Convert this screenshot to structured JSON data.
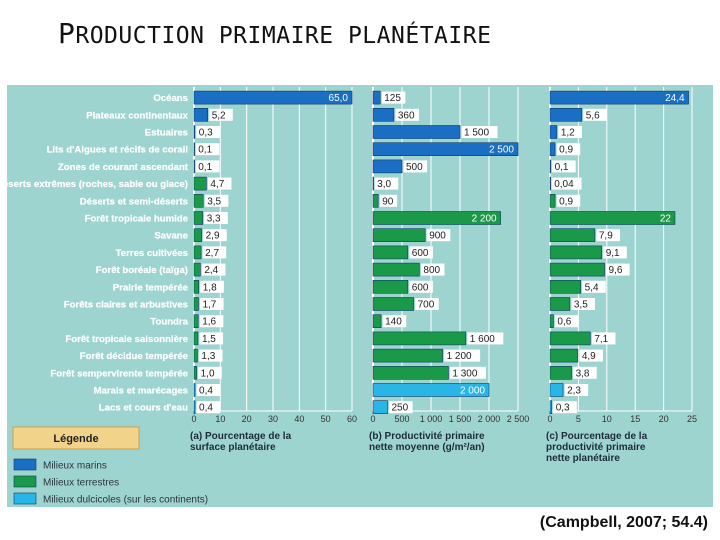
{
  "slide": {
    "title_first_letter": "P",
    "title_rest": "RODUCTION PRIMAIRE PLANÉTAIRE",
    "citation": "(Campbell, 2007; 54.4)"
  },
  "chart_data": {
    "type": "bar",
    "categories": [
      "Océans",
      "Plateaux continentaux",
      "Estuaires",
      "Lits d'Algues et récifs de corail",
      "Zones de courant ascendant",
      "Déserts extrêmes (roches, sable ou glace)",
      "Déserts et semi-déserts",
      "Forêt tropicale humide",
      "Savane",
      "Terres cultivées",
      "Forêt boréale (taïga)",
      "Prairie tempérée",
      "Forêts claires et arbustives",
      "Toundra",
      "Forêt tropicale saisonnière",
      "Forêt décidue tempérée",
      "Forêt sempervirente tempérée",
      "Marais et marécages",
      "Lacs et cours d'eau"
    ],
    "groups": [
      "marin",
      "marin",
      "marin",
      "marin",
      "marin",
      "terrestre",
      "terrestre",
      "terrestre",
      "terrestre",
      "terrestre",
      "terrestre",
      "terrestre",
      "terrestre",
      "terrestre",
      "terrestre",
      "terrestre",
      "terrestre",
      "dulcicole",
      "dulcicole"
    ],
    "panels": [
      {
        "label": "(a) Pourcentage de la surface planétaire",
        "values": [
          65.0,
          5.2,
          0.3,
          0.1,
          0.1,
          4.7,
          3.5,
          3.3,
          2.9,
          2.7,
          2.4,
          1.8,
          1.7,
          1.6,
          1.5,
          1.3,
          1.0,
          0.4,
          0.4
        ],
        "value_labels": [
          "65,0",
          "5,2",
          "0,3",
          "0,1",
          "0,1",
          "4,7",
          "3,5",
          "3,3",
          "2,9",
          "2,7",
          "2,4",
          "1,8",
          "1,7",
          "1,6",
          "1,5",
          "1,3",
          "1,0",
          "0,4",
          "0,4"
        ],
        "xlim": [
          0,
          60
        ],
        "ticks": [
          "0",
          "10",
          "20",
          "30",
          "40",
          "50",
          "60"
        ]
      },
      {
        "label": "(b) Productivité primaire nette moyenne (g/m²/an)",
        "values": [
          125,
          360,
          1500,
          2500,
          500,
          3.0,
          90,
          2200,
          900,
          600,
          800,
          600,
          700,
          140,
          1600,
          1200,
          1300,
          2000,
          250
        ],
        "value_labels": [
          "125",
          "360",
          "1 500",
          "2 500",
          "500",
          "3,0",
          "90",
          "2 200",
          "900",
          "600",
          "800",
          "600",
          "700",
          "140",
          "1 600",
          "1 200",
          "1 300",
          "2 000",
          "250"
        ],
        "xlim": [
          0,
          2500
        ],
        "ticks": [
          "0",
          "500",
          "1 000",
          "1 500",
          "2 000",
          "2 500"
        ]
      },
      {
        "label": "(c) Pourcentage de la productivité primaire nette planétaire",
        "values": [
          24.4,
          5.6,
          1.2,
          0.9,
          0.1,
          0.04,
          0.9,
          22,
          7.9,
          9.1,
          9.6,
          5.4,
          3.5,
          0.6,
          7.1,
          4.9,
          3.8,
          2.3,
          0.3
        ],
        "value_labels": [
          "24,4",
          "5,6",
          "1,2",
          "0,9",
          "0,1",
          "0,04",
          "0,9",
          "22",
          "7,9",
          "9,1",
          "9,6",
          "5,4",
          "3,5",
          "0,6",
          "7,1",
          "4,9",
          "3,8",
          "2,3",
          "0,3"
        ],
        "xlim": [
          0,
          25
        ],
        "ticks": [
          "0",
          "5",
          "10",
          "15",
          "20",
          "25"
        ]
      }
    ],
    "legend": {
      "title": "Légende",
      "items": [
        {
          "key": "marin",
          "label": "Milieux marins",
          "color": "#1a6fc4"
        },
        {
          "key": "terrestre",
          "label": "Milieux terrestres",
          "color": "#1a9a48"
        },
        {
          "key": "dulcicole",
          "label": "Milieux dulcicoles (sur les continents)",
          "color": "#29b5e6"
        }
      ]
    },
    "colors": {
      "background": "#9ed4d0",
      "legend_title_bg": "#f2d38a",
      "bar_outline": "#0b3d66"
    }
  }
}
